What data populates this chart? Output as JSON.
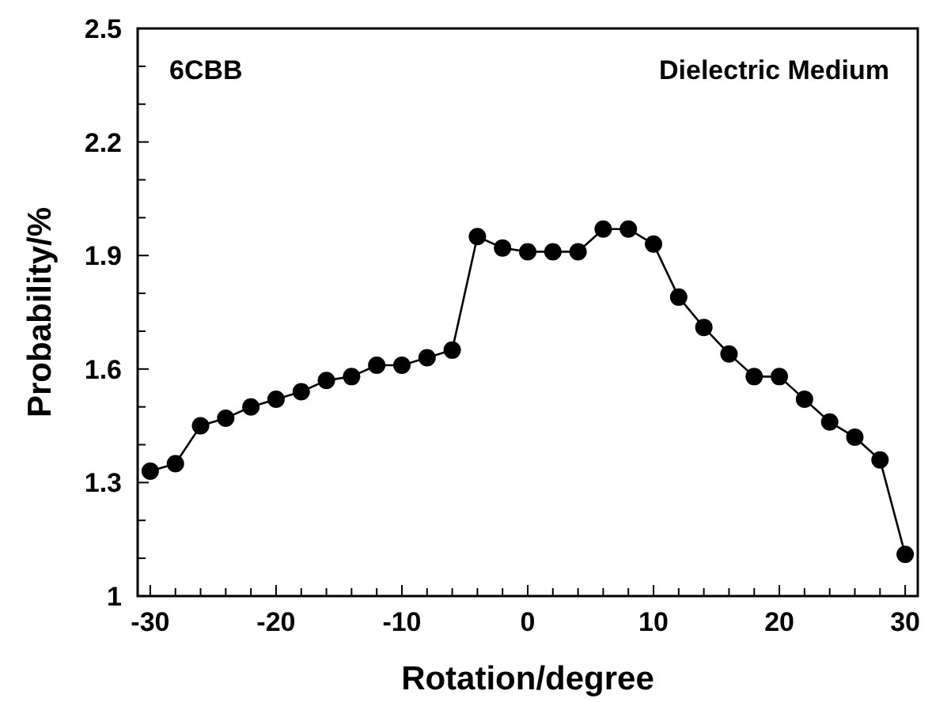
{
  "chart_data": {
    "type": "line",
    "xlabel": "Rotation/degree",
    "ylabel": "Probability/%",
    "annotations": [
      "6CBB",
      "Dielectric Medium"
    ],
    "x": [
      -30,
      -28,
      -26,
      -24,
      -22,
      -20,
      -18,
      -16,
      -14,
      -12,
      -10,
      -8,
      -6,
      -4,
      -2,
      0,
      2,
      4,
      6,
      8,
      10,
      12,
      14,
      16,
      18,
      20,
      22,
      24,
      26,
      28,
      30
    ],
    "series": [
      {
        "color": "#000000",
        "values": [
          1.33,
          1.35,
          1.45,
          1.47,
          1.5,
          1.52,
          1.54,
          1.57,
          1.58,
          1.61,
          1.61,
          1.63,
          1.65,
          1.95,
          1.92,
          1.91,
          1.91,
          1.91,
          1.97,
          1.97,
          1.93,
          1.79,
          1.71,
          1.64,
          1.58,
          1.58,
          1.52,
          1.46,
          1.42,
          1.36,
          1.11
        ]
      }
    ],
    "marker": "circle",
    "line_style": "solid",
    "grid": false,
    "xlim": [
      -31,
      31
    ],
    "xticks": [
      -30,
      {
        "value": -28,
        "label": null
      },
      {
        "value": -26,
        "label": null
      },
      {
        "value": -24,
        "label": null
      },
      {
        "value": -22,
        "label": null
      },
      -20,
      {
        "value": -18,
        "label": null
      },
      {
        "value": -16,
        "label": null
      },
      {
        "value": -14,
        "label": null
      },
      {
        "value": -12,
        "label": null
      },
      -10,
      {
        "value": -8,
        "label": null
      },
      {
        "value": -6,
        "label": null
      },
      {
        "value": -4,
        "label": null
      },
      {
        "value": -2,
        "label": null
      },
      0,
      {
        "value": 2,
        "label": null
      },
      {
        "value": 4,
        "label": null
      },
      {
        "value": 6,
        "label": null
      },
      {
        "value": 8,
        "label": null
      },
      10,
      {
        "value": 12,
        "label": null
      },
      {
        "value": 14,
        "label": null
      },
      {
        "value": 16,
        "label": null
      },
      {
        "value": 18,
        "label": null
      },
      20,
      {
        "value": 22,
        "label": null
      },
      {
        "value": 24,
        "label": null
      },
      {
        "value": 26,
        "label": null
      },
      {
        "value": 28,
        "label": null
      },
      30
    ],
    "ylim": [
      1,
      2.5
    ],
    "yticks": [
      1,
      {
        "value": 1.1,
        "label": null
      },
      {
        "value": 1.2,
        "label": null
      },
      1.3,
      {
        "value": 1.4,
        "label": null
      },
      {
        "value": 1.5,
        "label": null
      },
      1.6,
      {
        "value": 1.7,
        "label": null
      },
      {
        "value": 1.8,
        "label": null
      },
      1.9,
      {
        "value": 2.0,
        "label": null
      },
      {
        "value": 2.1,
        "label": null
      },
      2.2,
      {
        "value": 2.3,
        "label": null
      },
      {
        "value": 2.4,
        "label": null
      },
      2.5
    ]
  }
}
